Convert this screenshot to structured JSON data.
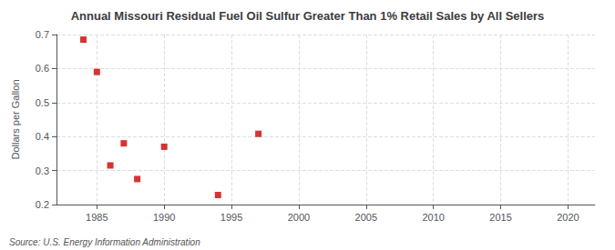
{
  "chart_data": {
    "type": "scatter",
    "title": "Annual Missouri Residual Fuel Oil Sulfur Greater Than 1% Retail Sales by All Sellers",
    "ylabel": "Dollars per Gallon",
    "annotations": [
      "Source: U.S. Energy Information Administration"
    ],
    "x": [
      1984,
      1985,
      1986,
      1987,
      1988,
      1990,
      1994,
      1997
    ],
    "values": [
      0.685,
      0.59,
      0.315,
      0.38,
      0.275,
      0.37,
      0.228,
      0.408
    ],
    "color": "#cc0000",
    "marker": "square",
    "xlim": [
      1982,
      2022
    ],
    "ylim": [
      0.2,
      0.7
    ],
    "xticks": [
      1985,
      1990,
      1995,
      2000,
      2005,
      2010,
      2015,
      2020
    ],
    "yticks": [
      {
        "value": 0.2,
        "label": "0.2"
      },
      {
        "value": 0.3,
        "label": "0.3"
      },
      {
        "value": 0.4,
        "label": "0.4"
      },
      {
        "value": 0.5,
        "label": "0.5"
      },
      {
        "value": 0.6,
        "label": "0.6"
      },
      {
        "value": 0.7,
        "label": "0.7"
      }
    ],
    "grid": true
  }
}
